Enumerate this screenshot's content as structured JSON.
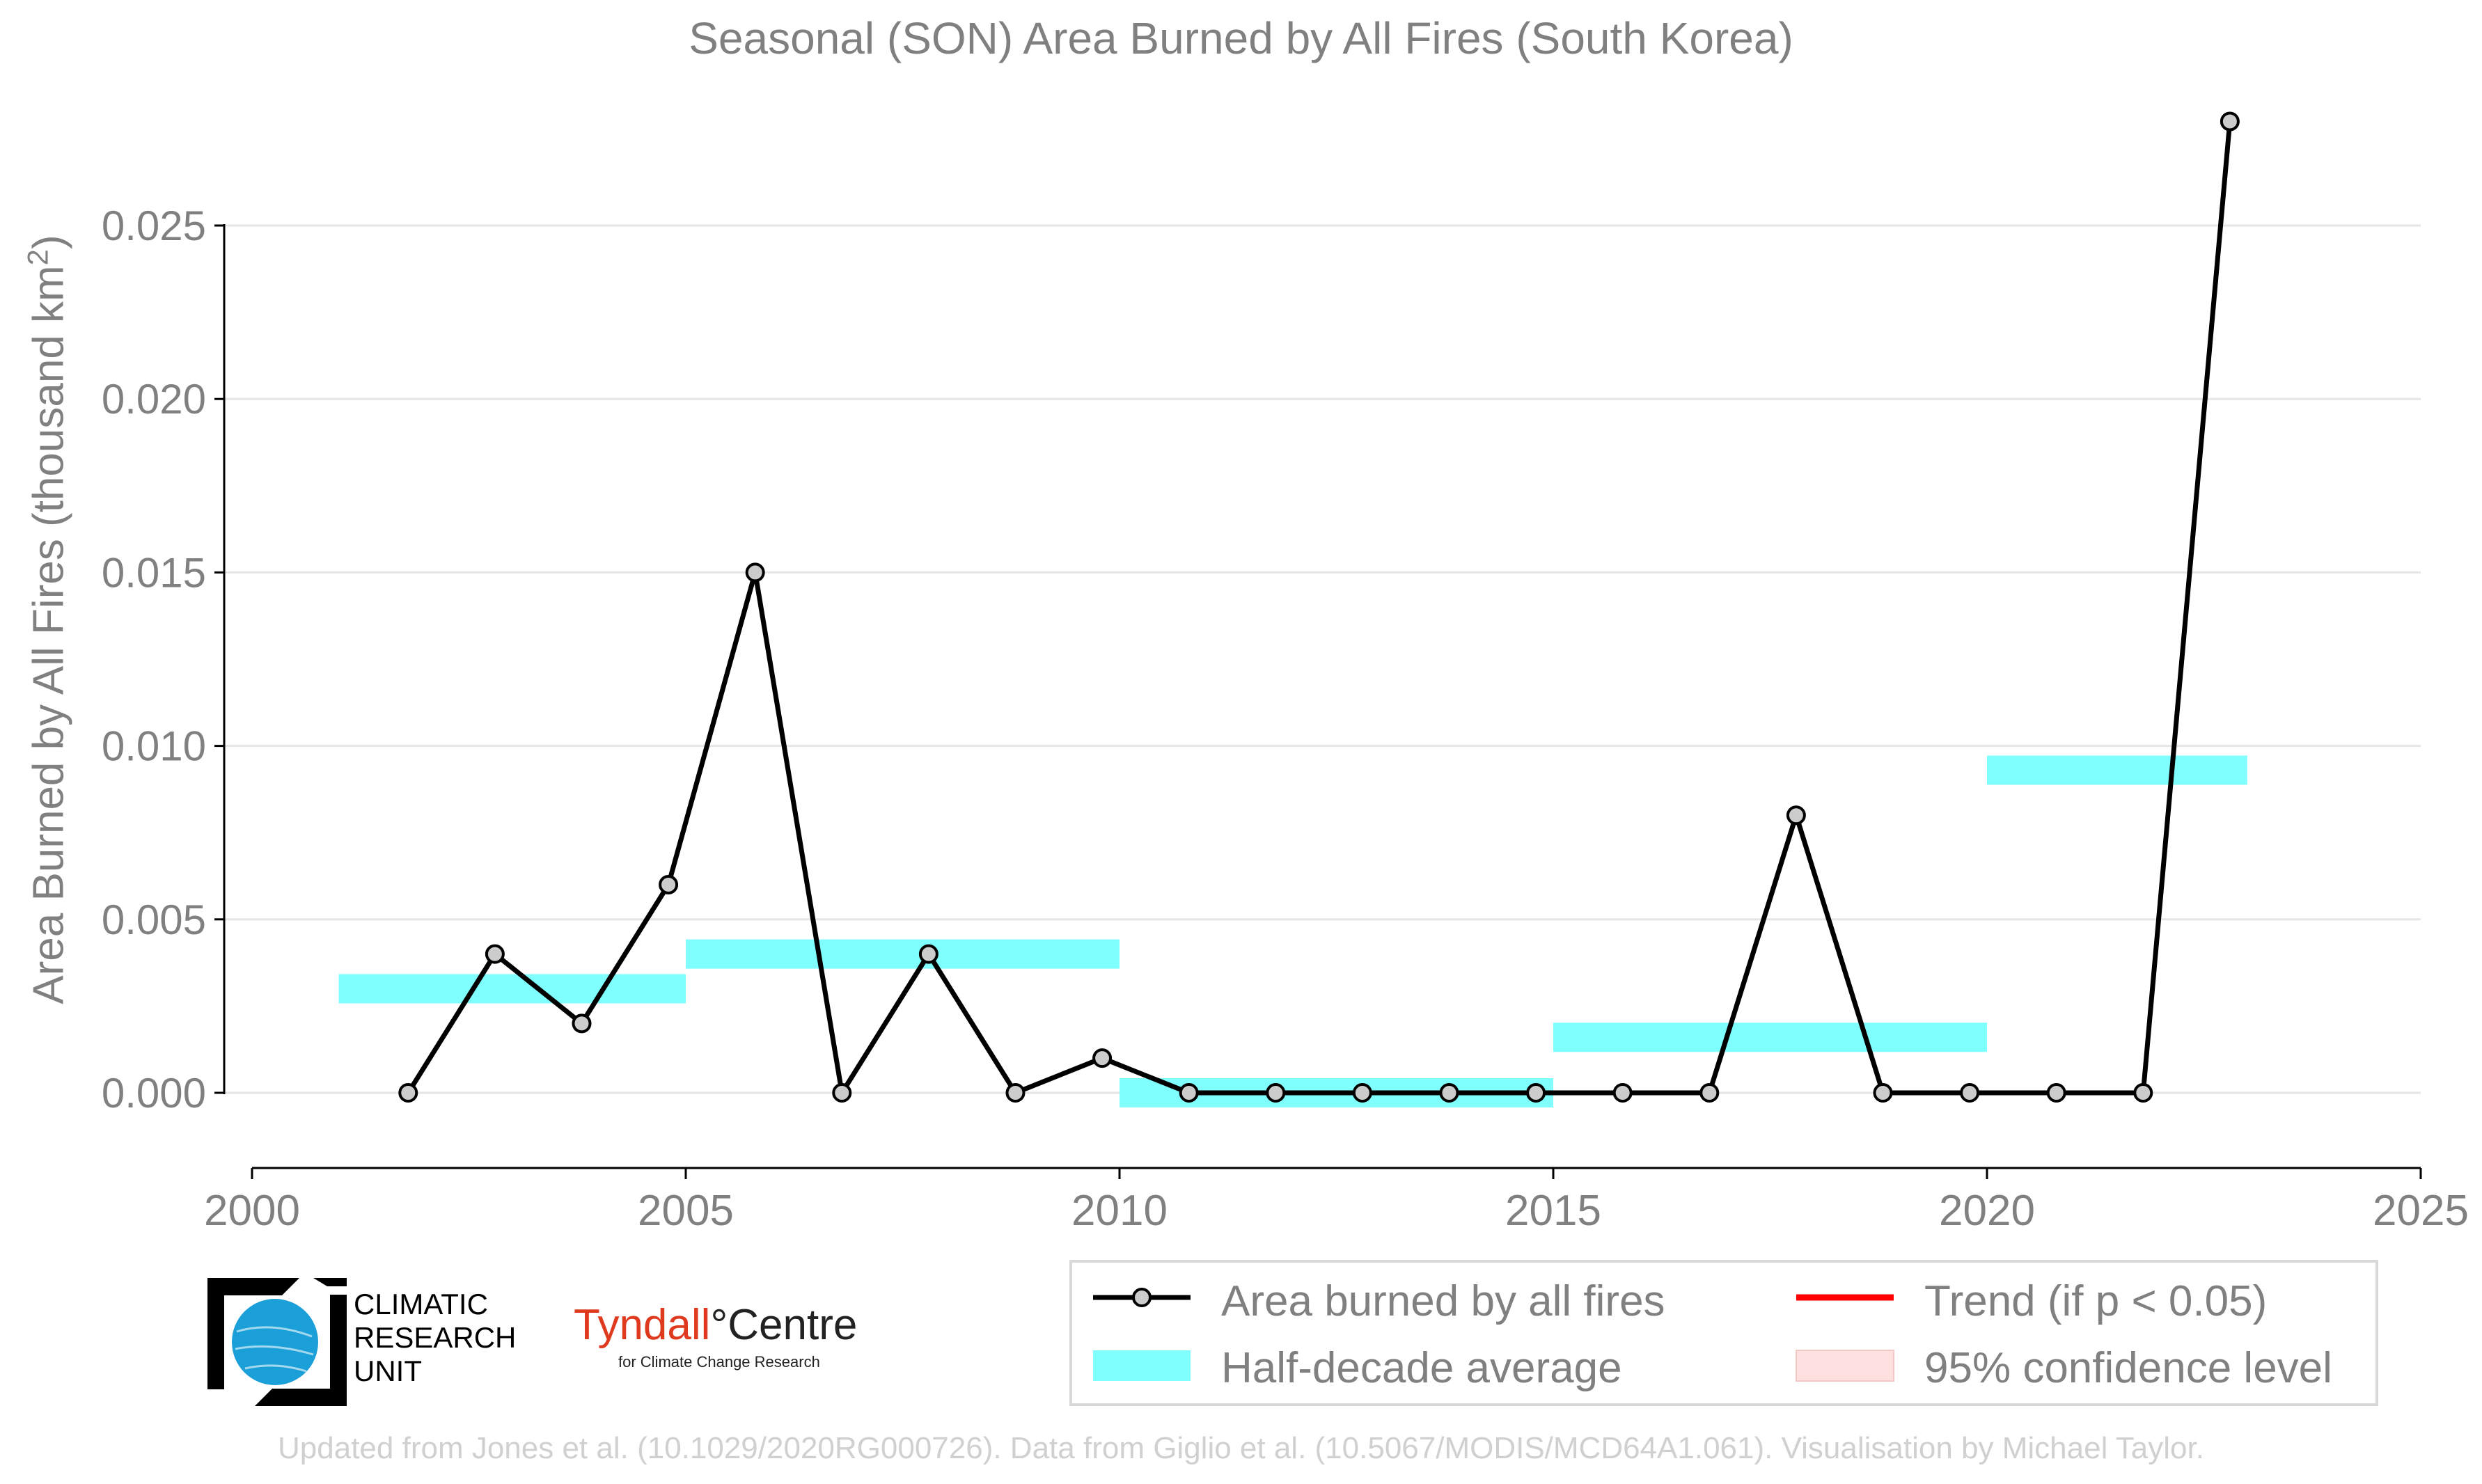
{
  "chart_data": {
    "type": "line",
    "title": "Seasonal (SON) Area Burned by All Fires (South Korea)",
    "ylabel_main": "Area Burned by All Fires (thousand km",
    "ylabel_sup": "2",
    "ylabel_end": ")",
    "xlabel": "",
    "xlim": [
      2000,
      2025
    ],
    "ylim": [
      -0.002,
      0.029
    ],
    "x_ticks": [
      2000,
      2005,
      2010,
      2015,
      2020,
      2025
    ],
    "y_ticks": [
      0.0,
      0.005,
      0.01,
      0.015,
      0.02,
      0.025
    ],
    "y_tick_labels": [
      "0.000",
      "0.005",
      "0.010",
      "0.015",
      "0.020",
      "0.025"
    ],
    "grid": "horizontal",
    "series": [
      {
        "name": "Area burned by all fires",
        "color": "#000000",
        "marker_fill": "#cccccc",
        "x": [
          2001.8,
          2002.8,
          2003.8,
          2004.8,
          2005.8,
          2006.8,
          2007.8,
          2008.8,
          2009.8,
          2010.8,
          2011.8,
          2012.8,
          2013.8,
          2014.8,
          2015.8,
          2016.8,
          2017.8,
          2018.8,
          2019.8,
          2020.8,
          2021.8,
          2022.8
        ],
        "values": [
          0.0,
          0.004,
          0.002,
          0.006,
          0.015,
          0.0,
          0.004,
          0.0,
          0.001,
          0.0,
          0.0,
          0.0,
          0.0,
          0.0,
          0.0,
          0.0,
          0.008,
          0.0,
          0.0,
          0.0,
          0.0,
          0.028
        ]
      }
    ],
    "half_decade_averages": {
      "name": "Half-decade average",
      "color": "#80ffff",
      "segments": [
        {
          "x_start": 2001,
          "x_end": 2005,
          "value": 0.003
        },
        {
          "x_start": 2005,
          "x_end": 2010,
          "value": 0.004
        },
        {
          "x_start": 2010,
          "x_end": 2015,
          "value": 0.0
        },
        {
          "x_start": 2015,
          "x_end": 2020,
          "value": 0.0016
        },
        {
          "x_start": 2020,
          "x_end": 2023,
          "value": 0.0093
        }
      ]
    },
    "legend": {
      "placement": "bottom-right",
      "items": [
        {
          "label": "Area burned by all fires",
          "kind": "line-marker",
          "color": "#000000"
        },
        {
          "label": "Trend (if p < 0.05)",
          "kind": "line",
          "color": "#ff0000"
        },
        {
          "label": "Half-decade average",
          "kind": "band",
          "color": "#80ffff"
        },
        {
          "label": "95% confidence level",
          "kind": "band",
          "color": "#ffe0e0"
        }
      ]
    }
  },
  "logos": {
    "cru_lines": [
      "CLIMATIC",
      "RESEARCH",
      "UNIT"
    ],
    "tyndall_part1": "Tyndall",
    "tyndall_degree": "°",
    "tyndall_part2": "Centre",
    "tyndall_sub": "for Climate Change Research"
  },
  "footer": "Updated from Jones et al. (10.1029/2020RG000726). Data from Giglio et al. (10.5067/MODIS/MCD64A1.061). Visualisation by Michael Taylor."
}
